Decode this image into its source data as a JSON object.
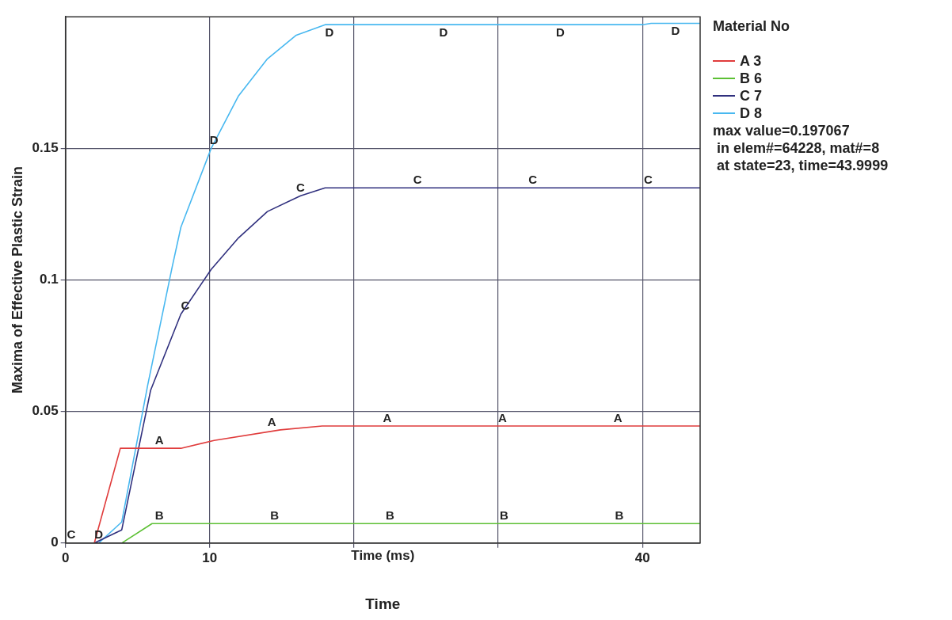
{
  "chart_data": {
    "type": "line",
    "xlabel": "Time",
    "ylabel": "Maxima of Effective Plastic Strain",
    "legend_title": "Material No",
    "legend": "right",
    "grid": true,
    "marker": "none",
    "line_style": "solid",
    "xlim": [
      0,
      44
    ],
    "xticks": [
      0,
      10,
      {
        "value": 20,
        "label": null
      },
      {
        "value": 30,
        "label": null
      },
      40
    ],
    "ylim": [
      0,
      0.2
    ],
    "yticks": [
      0,
      0.05,
      0.1,
      0.15
    ],
    "series": [
      {
        "name": "A 3",
        "color": "#e03c3c",
        "x": [
          2,
          3.8,
          8,
          10.3,
          14.9,
          17.8,
          44
        ],
        "values": [
          0,
          0.036,
          0.036,
          0.039,
          0.043,
          0.0445,
          0.0445
        ]
      },
      {
        "name": "B 6",
        "color": "#5cc034",
        "x": [
          3.9,
          6,
          44
        ],
        "values": [
          0,
          0.0074,
          0.0074
        ]
      },
      {
        "name": "C 7",
        "color": "#30307e",
        "x": [
          0,
          2,
          3.9,
          5.9,
          8,
          10.1,
          12,
          14,
          16.3,
          18,
          44
        ],
        "values": [
          0,
          0,
          0.005,
          0.058,
          0.087,
          0.104,
          0.116,
          0.126,
          0.132,
          0.135,
          0.135
        ]
      },
      {
        "name": "D 8",
        "color": "#48b8f0",
        "x": [
          0,
          2.3,
          3.9,
          5.7,
          7.4,
          8,
          10.1,
          12,
          14,
          16,
          18,
          40,
          40.6,
          44
        ],
        "values": [
          0,
          0,
          0.008,
          0.06,
          0.105,
          0.12,
          0.15,
          0.17,
          0.184,
          0.193,
          0.197,
          0.197,
          0.1975,
          0.1975
        ]
      }
    ],
    "annotations": [
      "Time (ms)",
      "max value=0.197067",
      " in elem#=64228, mat#=8",
      " at state=23, time=43.9999",
      {
        "text": "A",
        "x": 6.5,
        "y": 0.036
      },
      {
        "text": "A",
        "x": 14.3,
        "y": 0.043
      },
      {
        "text": "A",
        "x": 22.3,
        "y": 0.0445
      },
      {
        "text": "A",
        "x": 30.3,
        "y": 0.0445
      },
      {
        "text": "A",
        "x": 38.3,
        "y": 0.0445
      },
      {
        "text": "B",
        "x": 6.5,
        "y": 0.0074
      },
      {
        "text": "B",
        "x": 14.5,
        "y": 0.0074
      },
      {
        "text": "B",
        "x": 22.5,
        "y": 0.0074
      },
      {
        "text": "B",
        "x": 30.4,
        "y": 0.0074
      },
      {
        "text": "B",
        "x": 38.4,
        "y": 0.0074
      },
      {
        "text": "C",
        "x": 0.4,
        "y": 0
      },
      {
        "text": "C",
        "x": 8.3,
        "y": 0.087
      },
      {
        "text": "C",
        "x": 16.3,
        "y": 0.132
      },
      {
        "text": "C",
        "x": 24.4,
        "y": 0.135
      },
      {
        "text": "C",
        "x": 32.4,
        "y": 0.135
      },
      {
        "text": "C",
        "x": 40.4,
        "y": 0.135
      },
      {
        "text": "D",
        "x": 2.3,
        "y": 0
      },
      {
        "text": "D",
        "x": 10.3,
        "y": 0.15
      },
      {
        "text": "D",
        "x": 18.3,
        "y": 0.197
      },
      {
        "text": "D",
        "x": 26.2,
        "y": 0.197
      },
      {
        "text": "D",
        "x": 34.3,
        "y": 0.197
      },
      {
        "text": "D",
        "x": 42.3,
        "y": 0.1975
      }
    ]
  }
}
